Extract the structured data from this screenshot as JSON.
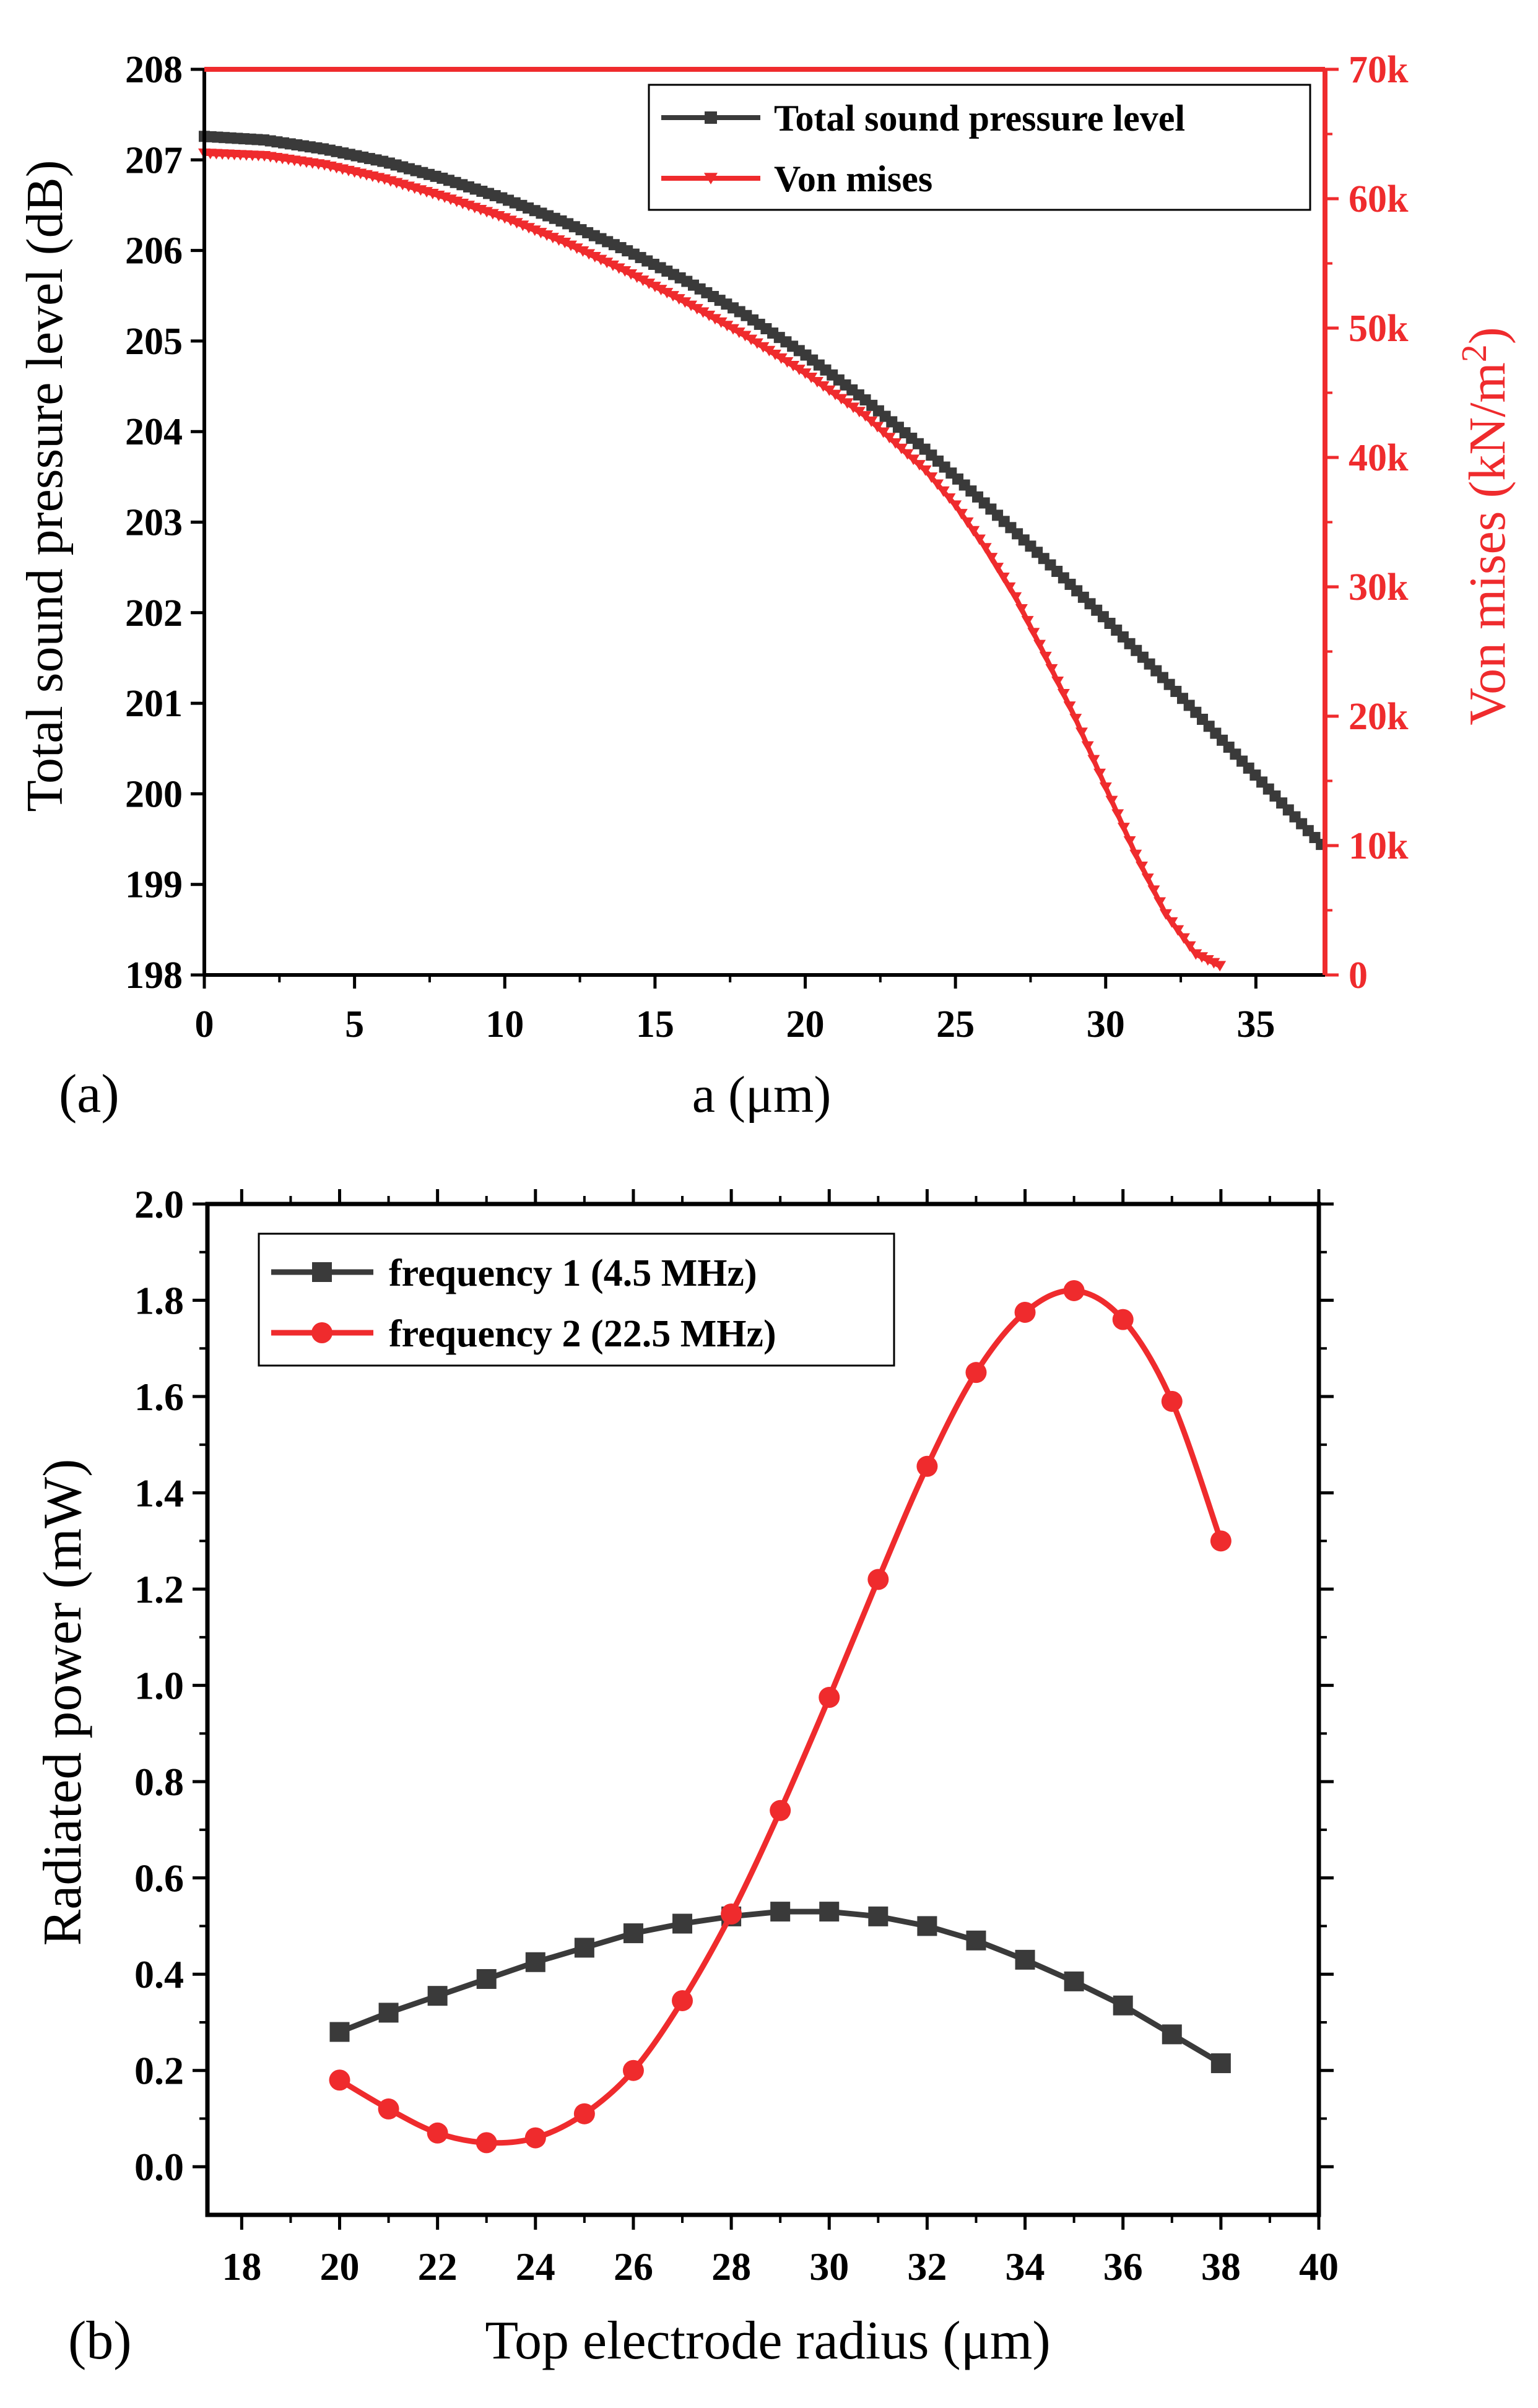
{
  "chart_data": [
    {
      "panel_label": "(a)",
      "type": "line",
      "xlabel": "a (μm)",
      "ylabel": "Total sound pressure level (dB)",
      "y2label_prefix": "Von mises (kN/m",
      "y2label_sup": "2",
      "y2label_suffix": ")",
      "xlim": [
        0,
        37.3
      ],
      "ylim": [
        198,
        208
      ],
      "y2lim": [
        0,
        70000
      ],
      "xticks": [
        0,
        5,
        10,
        15,
        20,
        25,
        30,
        35
      ],
      "yticks": [
        198,
        199,
        200,
        201,
        202,
        203,
        204,
        205,
        206,
        207,
        208
      ],
      "y2ticks": [
        0,
        10000,
        20000,
        30000,
        40000,
        50000,
        60000,
        70000
      ],
      "y2ticklabels": [
        "0",
        "10k",
        "20k",
        "30k",
        "40k",
        "50k",
        "60k",
        "70k"
      ],
      "legend_position": "top-right",
      "colors": {
        "spl": "#3a3a3a",
        "vm": "#ef2b2d",
        "frame": "#000000",
        "right_axis": "#ef2b2d"
      },
      "series": [
        {
          "name": "Total sound pressure level",
          "axis": "left",
          "marker": "square",
          "x": [
            0,
            2,
            4,
            6,
            8,
            10,
            12,
            14,
            16,
            18,
            20,
            22,
            24,
            26,
            28,
            30,
            32,
            34,
            36,
            37.3
          ],
          "y": [
            207.26,
            207.22,
            207.12,
            206.98,
            206.79,
            206.57,
            206.31,
            206.01,
            205.67,
            205.29,
            204.85,
            204.35,
            203.8,
            203.2,
            202.58,
            201.93,
            201.25,
            200.55,
            199.85,
            199.4
          ]
        },
        {
          "name": "Von mises",
          "axis": "right",
          "marker": "triangle-down",
          "x": [
            0,
            2,
            4,
            6,
            8,
            10,
            12,
            14,
            16,
            18,
            20,
            22,
            24,
            25,
            26,
            27,
            28,
            29,
            30,
            31,
            32,
            33,
            33.8
          ],
          "y": [
            63500,
            63300,
            62600,
            61500,
            60100,
            58500,
            56600,
            54400,
            52000,
            49400,
            46500,
            43200,
            39000,
            36300,
            33000,
            29200,
            24600,
            19800,
            14500,
            9300,
            4700,
            1600,
            700
          ]
        }
      ]
    },
    {
      "panel_label": "(b)",
      "type": "line",
      "xlabel": "Top electrode radius (μm)",
      "ylabel": "Radiated power (mW)",
      "xlim": [
        17.3,
        40
      ],
      "ylim": [
        -0.1,
        2.0
      ],
      "xticks": [
        18,
        20,
        22,
        24,
        26,
        28,
        30,
        32,
        34,
        36,
        38,
        40
      ],
      "yticks": [
        0.0,
        0.2,
        0.4,
        0.6,
        0.8,
        1.0,
        1.2,
        1.4,
        1.6,
        1.8,
        2.0
      ],
      "yticklabels": [
        "0.0",
        "0.2",
        "0.4",
        "0.6",
        "0.8",
        "1.0",
        "1.2",
        "1.4",
        "1.6",
        "1.8",
        "2.0"
      ],
      "legend_position": "top-left",
      "colors": {
        "f1": "#3a3a3a",
        "f2": "#ef2b2d",
        "frame": "#000000"
      },
      "series": [
        {
          "name": "frequency 1 (4.5 MHz)",
          "marker": "square",
          "x": [
            20,
            21,
            22,
            23,
            24,
            25,
            26,
            27,
            28,
            29,
            30,
            31,
            32,
            33,
            34,
            35,
            36,
            37,
            38
          ],
          "y": [
            0.28,
            0.32,
            0.355,
            0.39,
            0.425,
            0.455,
            0.485,
            0.505,
            0.52,
            0.53,
            0.53,
            0.52,
            0.5,
            0.47,
            0.43,
            0.385,
            0.335,
            0.275,
            0.215
          ]
        },
        {
          "name": "frequency 2 (22.5 MHz)",
          "marker": "circle",
          "x": [
            20,
            21,
            22,
            23,
            24,
            25,
            26,
            27,
            28,
            29,
            30,
            31,
            32,
            33,
            34,
            35,
            36,
            37,
            38
          ],
          "y": [
            0.18,
            0.12,
            0.07,
            0.05,
            0.06,
            0.11,
            0.2,
            0.345,
            0.525,
            0.74,
            0.975,
            1.22,
            1.455,
            1.65,
            1.775,
            1.82,
            1.76,
            1.59,
            1.3
          ]
        }
      ]
    }
  ]
}
